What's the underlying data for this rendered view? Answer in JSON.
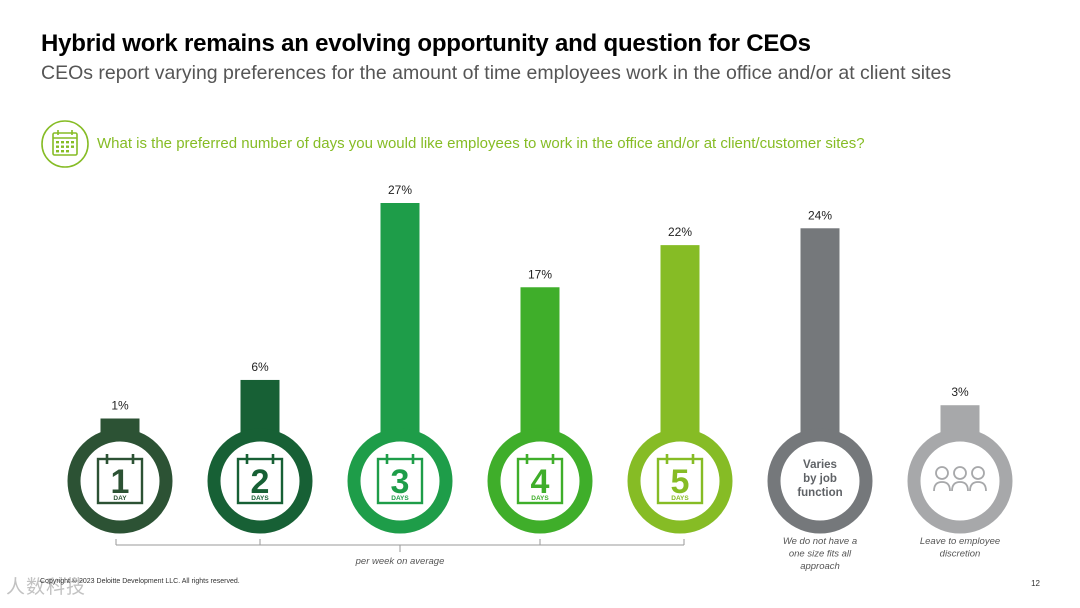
{
  "header": {
    "title": "Hybrid work remains an evolving opportunity and question for CEOs",
    "subtitle": "CEOs report varying preferences for the amount of time employees work in the office and/or at client sites"
  },
  "question": {
    "icon": "calendar-icon",
    "text": "What is the preferred number of days you would like employees to work in the office and/or at client/customer sites?",
    "color": "#86BC25"
  },
  "chart_data": {
    "type": "bar",
    "categories": [
      "1 DAY",
      "2 DAYS",
      "3 DAYS",
      "4 DAYS",
      "5 DAYS",
      "Varies by job function",
      "Leave to employee discretion"
    ],
    "values": [
      1,
      6,
      27,
      17,
      22,
      24,
      3
    ],
    "value_labels": [
      "1%",
      "6%",
      "27%",
      "17%",
      "22%",
      "24%",
      "3%"
    ],
    "unit": "%",
    "ylim": [
      0,
      27
    ],
    "colors": [
      "#2C5234",
      "#176035",
      "#1E9D49",
      "#3FAE2A",
      "#86BC25",
      "#75787B",
      "#A7A8AA"
    ],
    "day_items": [
      {
        "number": "1",
        "unit": "DAY"
      },
      {
        "number": "2",
        "unit": "DAYS"
      },
      {
        "number": "3",
        "unit": "DAYS"
      },
      {
        "number": "4",
        "unit": "DAYS"
      },
      {
        "number": "5",
        "unit": "DAYS"
      }
    ],
    "varies_label": [
      "Varies",
      "by job",
      "function"
    ],
    "discretion_icon": "people-icon",
    "bracket_label": "per week on average",
    "captions": [
      {
        "lines": [
          "We do not have a",
          "one size fits all",
          "approach"
        ]
      },
      {
        "lines": [
          "Leave to employee",
          "discretion"
        ]
      }
    ]
  },
  "footer": {
    "copyright": "Copyright © 2023 Deloitte Development LLC. All rights reserved.",
    "page_number": "12",
    "watermark": "人数科技"
  }
}
